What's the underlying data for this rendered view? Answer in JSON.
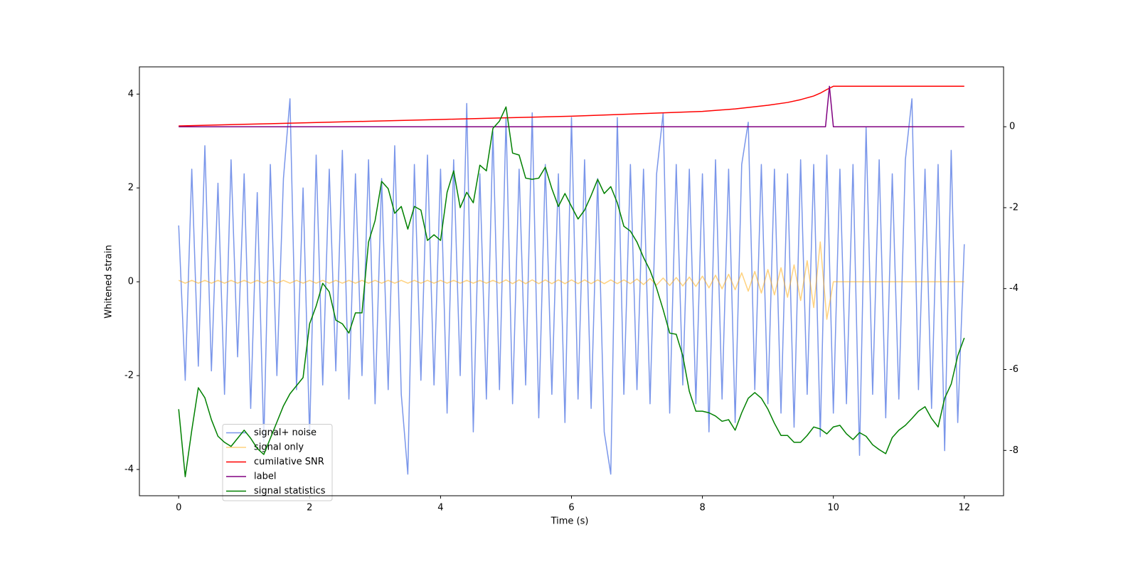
{
  "chart_data": {
    "type": "line",
    "xlabel": "Time (s)",
    "ylabel": "Whitened strain",
    "xlim": [
      -0.6,
      12.6
    ],
    "ylim": [
      -4.56,
      4.58
    ],
    "y2lim": [
      -9.12,
      1.48
    ],
    "xticks": [
      0,
      2,
      4,
      6,
      8,
      10,
      12
    ],
    "yticks": [
      -4,
      -2,
      0,
      2,
      4
    ],
    "y2ticks": [
      -8,
      -6,
      -4,
      -2,
      0
    ],
    "grid": false,
    "legend": "lower left",
    "x": [
      0,
      0.1,
      0.2,
      0.3,
      0.4,
      0.5,
      0.6,
      0.7,
      0.8,
      0.9,
      1,
      1.1,
      1.2,
      1.3,
      1.4,
      1.5,
      1.6,
      1.7,
      1.8,
      1.9,
      2,
      2.1,
      2.2,
      2.3,
      2.4,
      2.5,
      2.6,
      2.7,
      2.8,
      2.9,
      3,
      3.1,
      3.2,
      3.3,
      3.4,
      3.5,
      3.6,
      3.7,
      3.8,
      3.9,
      4,
      4.1,
      4.2,
      4.3,
      4.4,
      4.5,
      4.6,
      4.7,
      4.8,
      4.9,
      5,
      5.1,
      5.2,
      5.3,
      5.4,
      5.5,
      5.6,
      5.7,
      5.8,
      5.9,
      6,
      6.1,
      6.2,
      6.3,
      6.4,
      6.5,
      6.6,
      6.7,
      6.8,
      6.9,
      7,
      7.1,
      7.2,
      7.3,
      7.4,
      7.5,
      7.6,
      7.7,
      7.8,
      7.9,
      8,
      8.1,
      8.2,
      8.3,
      8.4,
      8.5,
      8.6,
      8.7,
      8.8,
      8.9,
      9,
      9.1,
      9.2,
      9.3,
      9.4,
      9.5,
      9.6,
      9.7,
      9.8,
      9.9,
      10,
      10.1,
      10.2,
      10.3,
      10.4,
      10.5,
      10.6,
      10.7,
      10.8,
      10.9,
      11,
      11.1,
      11.2,
      11.3,
      11.4,
      11.5,
      11.6,
      11.7,
      11.8,
      11.9,
      12
    ],
    "series": [
      {
        "name": "signal+ noise",
        "color": "#4169e1",
        "alpha": 0.7,
        "values": [
          1.2,
          -2.1,
          2.4,
          -1.8,
          2.9,
          -1.9,
          2.1,
          -2.4,
          2.6,
          -1.6,
          2.3,
          -2.7,
          1.9,
          -3.4,
          2.5,
          -2.0,
          2.2,
          3.9,
          -2.3,
          2.0,
          -3.3,
          2.7,
          -2.2,
          2.4,
          -1.9,
          2.8,
          -2.5,
          2.3,
          -2.0,
          2.6,
          -2.6,
          2.2,
          -2.3,
          2.9,
          -2.4,
          -4.1,
          2.5,
          -2.1,
          2.7,
          -2.2,
          2.4,
          -2.8,
          2.6,
          -2.0,
          3.8,
          -3.2,
          2.3,
          -2.5,
          3.2,
          -2.3,
          3.5,
          -2.6,
          2.4,
          -2.2,
          3.6,
          -2.9,
          2.5,
          -2.4,
          2.3,
          -3.0,
          3.5,
          -2.5,
          2.6,
          -2.7,
          2.2,
          -3.2,
          -4.1,
          3.5,
          -2.4,
          2.5,
          -2.3,
          2.4,
          -2.6,
          2.3,
          3.6,
          -2.8,
          2.5,
          -2.2,
          2.4,
          -2.6,
          2.3,
          -3.2,
          2.6,
          -2.5,
          2.4,
          -3.0,
          2.5,
          3.4,
          -2.3,
          2.5,
          -2.6,
          2.4,
          -2.8,
          2.3,
          -3.1,
          2.6,
          -2.4,
          2.5,
          -3.3,
          2.7,
          -2.8,
          2.4,
          -2.6,
          2.5,
          -3.7,
          3.3,
          -2.4,
          2.6,
          -2.9,
          2.3,
          -2.5,
          2.6,
          3.9,
          -2.3,
          2.4,
          -2.7,
          2.5,
          -3.6,
          2.8,
          -3.0,
          0.8
        ]
      },
      {
        "name": "signal only",
        "color": "#ffa500",
        "alpha": 0.5,
        "values": [
          0.03,
          -0.03,
          0.03,
          -0.03,
          0.03,
          -0.03,
          0.03,
          -0.03,
          0.03,
          -0.03,
          0.03,
          -0.03,
          0.03,
          -0.03,
          0.03,
          -0.03,
          0.03,
          -0.03,
          0.03,
          -0.03,
          0.03,
          -0.03,
          0.03,
          -0.03,
          0.03,
          -0.03,
          0.03,
          -0.03,
          0.03,
          -0.03,
          0.03,
          -0.03,
          0.03,
          -0.03,
          0.03,
          -0.03,
          0.03,
          -0.03,
          0.03,
          -0.03,
          0.03,
          -0.03,
          0.03,
          -0.03,
          0.03,
          -0.03,
          0.03,
          -0.03,
          0.03,
          -0.03,
          0.04,
          -0.04,
          0.04,
          -0.04,
          0.04,
          -0.04,
          0.04,
          -0.04,
          0.04,
          -0.04,
          0.04,
          -0.04,
          0.04,
          -0.04,
          0.04,
          -0.04,
          0.04,
          -0.04,
          0.04,
          -0.04,
          0.06,
          -0.06,
          0.07,
          -0.07,
          0.08,
          -0.08,
          0.09,
          -0.09,
          0.1,
          -0.1,
          0.12,
          -0.13,
          0.14,
          -0.15,
          0.16,
          -0.17,
          0.19,
          -0.2,
          0.22,
          -0.24,
          0.26,
          -0.28,
          0.3,
          -0.33,
          0.36,
          -0.4,
          0.45,
          -0.55,
          0.85,
          -0.8,
          0,
          0,
          0,
          0,
          0,
          0,
          0,
          0,
          0,
          0,
          0,
          0,
          0,
          0,
          0,
          0,
          0,
          0,
          0,
          0,
          0
        ]
      },
      {
        "name": "cumilative SNR",
        "color": "#ff0000",
        "axis": "y2",
        "x": [
          0,
          1,
          2,
          3,
          4,
          5,
          6,
          7,
          8,
          8.5,
          9,
          9.3,
          9.5,
          9.7,
          9.8,
          9.9,
          10,
          11,
          12
        ],
        "values": [
          0.02,
          0.06,
          0.1,
          0.14,
          0.18,
          0.22,
          0.26,
          0.32,
          0.38,
          0.44,
          0.53,
          0.6,
          0.67,
          0.76,
          0.83,
          0.92,
          1.0,
          1.0,
          1.0
        ]
      },
      {
        "name": "label",
        "color": "#800080",
        "axis": "y2",
        "x": [
          0,
          9.88,
          9.94,
          10,
          12
        ],
        "values": [
          0,
          0,
          1.0,
          0,
          0
        ]
      },
      {
        "name": "signal statistics",
        "color": "#008000",
        "axis": "y2",
        "values": [
          -6.98,
          -8.65,
          -7.5,
          -6.45,
          -6.7,
          -7.24,
          -7.65,
          -7.8,
          -7.9,
          -7.7,
          -7.5,
          -7.7,
          -7.95,
          -8.1,
          -7.7,
          -7.3,
          -6.9,
          -6.6,
          -6.4,
          -6.2,
          -4.87,
          -4.43,
          -3.87,
          -4.08,
          -4.78,
          -4.87,
          -5.1,
          -4.6,
          -4.6,
          -2.85,
          -2.32,
          -1.35,
          -1.53,
          -2.14,
          -1.97,
          -2.53,
          -1.97,
          -2.06,
          -2.81,
          -2.67,
          -2.81,
          -1.62,
          -1.09,
          -2.0,
          -1.62,
          -1.88,
          -0.95,
          -1.09,
          -0.04,
          0.14,
          0.49,
          -0.65,
          -0.7,
          -1.27,
          -1.3,
          -1.27,
          -1.0,
          -1.53,
          -1.97,
          -1.65,
          -1.97,
          -2.28,
          -2.06,
          -1.7,
          -1.3,
          -1.65,
          -1.48,
          -1.88,
          -2.46,
          -2.58,
          -2.85,
          -3.23,
          -3.55,
          -3.99,
          -4.52,
          -5.1,
          -5.13,
          -5.66,
          -6.54,
          -7.03,
          -7.03,
          -7.07,
          -7.15,
          -7.28,
          -7.24,
          -7.5,
          -7.07,
          -6.71,
          -6.57,
          -6.71,
          -6.98,
          -7.33,
          -7.63,
          -7.63,
          -7.8,
          -7.8,
          -7.63,
          -7.42,
          -7.47,
          -7.59,
          -7.42,
          -7.38,
          -7.59,
          -7.73,
          -7.56,
          -7.65,
          -7.86,
          -7.98,
          -8.08,
          -7.68,
          -7.5,
          -7.38,
          -7.21,
          -7.03,
          -6.92,
          -7.21,
          -7.42,
          -6.71,
          -6.36,
          -5.66,
          -5.22
        ]
      }
    ]
  }
}
